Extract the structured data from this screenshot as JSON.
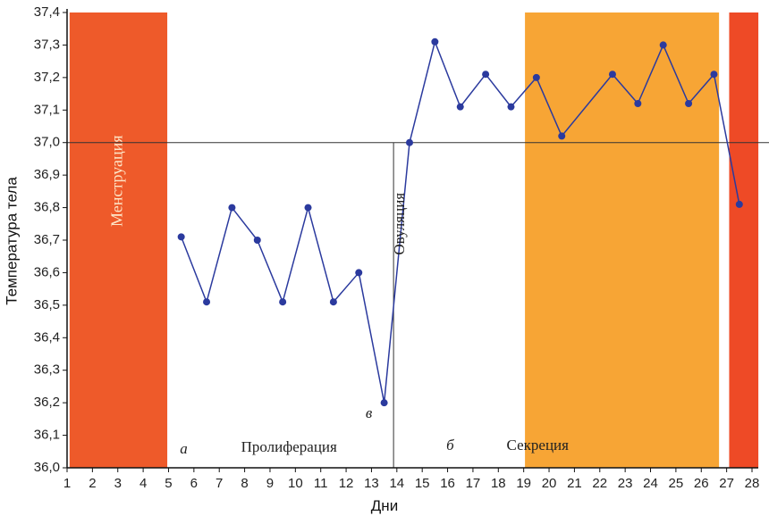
{
  "chart_data": {
    "type": "line",
    "xlabel": "Дни",
    "ylabel": "Температура тела",
    "xlim": [
      1,
      28
    ],
    "ylim": [
      36.0,
      37.4
    ],
    "x_ticks": [
      "1",
      "2",
      "3",
      "4",
      "5",
      "6",
      "7",
      "8",
      "9",
      "10",
      "11",
      "12",
      "13",
      "14",
      "15",
      "16",
      "17",
      "18",
      "19",
      "20",
      "21",
      "22",
      "23",
      "24",
      "25",
      "26",
      "27",
      "28"
    ],
    "y_ticks": [
      "36,0",
      "36,1",
      "36,2",
      "36,3",
      "36,4",
      "36,5",
      "36,6",
      "36,7",
      "36,8",
      "36,9",
      "37,0",
      "37,1",
      "37,2",
      "37,3",
      "37,4"
    ],
    "y_tick_values": [
      36.0,
      36.1,
      36.2,
      36.3,
      36.4,
      36.5,
      36.6,
      36.7,
      36.8,
      36.9,
      37.0,
      37.1,
      37.2,
      37.3,
      37.4
    ],
    "series": [
      {
        "x": [
          5.5,
          6.5,
          7.5,
          8.5,
          9.5,
          10.5,
          11.5,
          12.5,
          13.5,
          14.5,
          15.5,
          16.5,
          17.5,
          18.5,
          19.5,
          20.5,
          22.5,
          23.5,
          24.5,
          25.5,
          26.5,
          27.5
        ],
        "y": [
          36.71,
          36.51,
          36.8,
          36.7,
          36.51,
          36.8,
          36.51,
          36.6,
          36.2,
          37.0,
          37.31,
          37.11,
          37.21,
          37.11,
          37.2,
          37.02,
          37.21,
          37.12,
          37.3,
          37.12,
          37.21,
          36.81
        ],
        "color": "#2b3a9e"
      }
    ],
    "reference_lines": [
      {
        "orientation": "horizontal",
        "y": 37.0
      },
      {
        "orientation": "vertical",
        "x": 13.87
      }
    ],
    "bands": [
      {
        "x0": 1.1,
        "x1": 4.95,
        "y0": 36.0,
        "y1": 37.4,
        "color": "#ee5a2a",
        "label": "Менструация"
      },
      {
        "x0": 19.05,
        "x1": 26.7,
        "y0": 36.0,
        "y1": 37.4,
        "color": "#f7a535",
        "label": ""
      },
      {
        "x0": 27.1,
        "x1": 28.25,
        "y0": 36.0,
        "y1": 37.4,
        "color": "#ee4a26",
        "label": ""
      }
    ],
    "annotations": [
      {
        "text": "Овуляция",
        "x": 14.15,
        "y": 36.75,
        "style": "serif-vertical"
      },
      {
        "text": "Пролиферация",
        "x": 9.75,
        "y": 36.06,
        "style": "serif"
      },
      {
        "text": "Секреция",
        "x": 19.55,
        "y": 36.065,
        "style": "serif"
      },
      {
        "text": "а",
        "x": 5.6,
        "y": 36.055,
        "style": "serif-italic"
      },
      {
        "text": "б",
        "x": 16.1,
        "y": 36.065,
        "style": "serif-italic"
      },
      {
        "text": "в",
        "x": 12.9,
        "y": 36.165,
        "style": "serif-italic"
      }
    ],
    "grid": false,
    "legend": "none"
  }
}
